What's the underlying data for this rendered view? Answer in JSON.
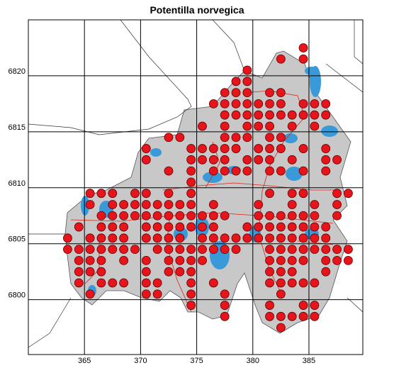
{
  "chart_data": {
    "type": "map",
    "title": "Potentilla norvegica",
    "xlim": [
      360,
      389.8
    ],
    "ylim": [
      6795.1,
      6825
    ],
    "xticks": [
      365,
      370,
      375,
      380,
      385
    ],
    "yticks": [
      6800,
      6805,
      6810,
      6815,
      6820
    ],
    "dot_color": "#e8141b",
    "rows": [
      {
        "y": 6822.5,
        "x": [
          384.5
        ]
      },
      {
        "y": 6821.5,
        "x": [
          382.5,
          384.5
        ]
      },
      {
        "y": 6820.5,
        "x": [
          379.5
        ]
      },
      {
        "y": 6819.5,
        "x": [
          378.5,
          379.5
        ]
      },
      {
        "y": 6818.5,
        "x": [
          377.5,
          378.5,
          379.5,
          381.5,
          382.5
        ]
      },
      {
        "y": 6817.5,
        "x": [
          376.5,
          377.5,
          378.5,
          379.5,
          380.5,
          381.5,
          382.5,
          384.5,
          385.5,
          386.5
        ]
      },
      {
        "y": 6816.5,
        "x": [
          377.5,
          378.5,
          379.5,
          380.5,
          381.5,
          382.5,
          383.5,
          384.5,
          385.5,
          386.5
        ]
      },
      {
        "y": 6815.5,
        "x": [
          375.5,
          377.5,
          379.5,
          380.5,
          381.5,
          383.5,
          385.5
        ]
      },
      {
        "y": 6814.5,
        "x": [
          372.5,
          373.5,
          377.5,
          378.5,
          379.5,
          381.5,
          382.5
        ]
      },
      {
        "y": 6813.5,
        "x": [
          370.5,
          374.5,
          375.5,
          376.5,
          377.5,
          378.5,
          380.5,
          381.5,
          382.5,
          384.5,
          386.5
        ]
      },
      {
        "y": 6812.5,
        "x": [
          370.5,
          374.5,
          375.5,
          376.5,
          377.5,
          379.5,
          380.5,
          381.5,
          383.5,
          386.5,
          387.5
        ]
      },
      {
        "y": 6811.5,
        "x": [
          372.5,
          374.5,
          376.5,
          377.5,
          378.5,
          379.5,
          381.5,
          382.5,
          384.5,
          386.5
        ]
      },
      {
        "y": 6810.5,
        "x": [
          374.5
        ]
      },
      {
        "y": 6809.5,
        "x": [
          365.5,
          366.5,
          367.5,
          369.5,
          370.5,
          372.5,
          374.5,
          381.5,
          383.5,
          384.5,
          387.5,
          388.5
        ]
      },
      {
        "y": 6808.5,
        "x": [
          365.5,
          367.5,
          368.5,
          369.5,
          370.5,
          371.5,
          372.5,
          373.5,
          374.5,
          376.5,
          380.5,
          383.5,
          385.5,
          387.5
        ]
      },
      {
        "y": 6807.5,
        "x": [
          366.5,
          367.5,
          368.5,
          369.5,
          370.5,
          371.5,
          372.5,
          373.5,
          374.5,
          375.5,
          376.5,
          377.5,
          380.5,
          381.5,
          382.5,
          383.5,
          384.5,
          385.5,
          387.5
        ]
      },
      {
        "y": 6806.5,
        "x": [
          364.5,
          366.5,
          367.5,
          368.5,
          370.5,
          371.5,
          372.5,
          373.5,
          374.5,
          375.5,
          376.5,
          379.5,
          380.5,
          381.5,
          382.5,
          383.5,
          384.5,
          385.5,
          386.5
        ]
      },
      {
        "y": 6805.5,
        "x": [
          363.5,
          365.5,
          366.5,
          367.5,
          368.5,
          370.5,
          371.5,
          372.5,
          373.5,
          375.5,
          376.5,
          377.5,
          378.5,
          379.5,
          380.5,
          381.5,
          382.5,
          383.5,
          384.5,
          385.5,
          386.5
        ]
      },
      {
        "y": 6804.5,
        "x": [
          363.5,
          364.5,
          365.5,
          366.5,
          367.5,
          368.5,
          369.5,
          371.5,
          372.5,
          373.5,
          374.5,
          375.5,
          376.5,
          377.5,
          378.5,
          381.5,
          382.5,
          383.5,
          384.5,
          385.5,
          386.5,
          387.5,
          388.5
        ]
      },
      {
        "y": 6803.5,
        "x": [
          364.5,
          365.5,
          366.5,
          368.5,
          370.5,
          372.5,
          373.5,
          374.5,
          375.5,
          381.5,
          382.5,
          383.5,
          384.5,
          386.5,
          387.5,
          388.5
        ]
      },
      {
        "y": 6802.5,
        "x": [
          364.5,
          365.5,
          366.5,
          370.5,
          372.5,
          373.5,
          374.5,
          381.5,
          382.5,
          383.5,
          386.5
        ]
      },
      {
        "y": 6801.5,
        "x": [
          364.5,
          366.5,
          367.5,
          368.5,
          370.5,
          371.5,
          374.5,
          376.5,
          381.5,
          382.5,
          383.5,
          384.5,
          385.5
        ]
      },
      {
        "y": 6800.5,
        "x": [
          365.5,
          370.5,
          371.5,
          374.5,
          377.5,
          382.5
        ]
      },
      {
        "y": 6799.5,
        "x": [
          374.5,
          377.5,
          381.5,
          384.5,
          385.5
        ]
      },
      {
        "y": 6798.5,
        "x": [
          377.5,
          381.5,
          382.5,
          383.5,
          384.5,
          385.5
        ]
      },
      {
        "y": 6797.5,
        "x": [
          382.5
        ]
      }
    ]
  }
}
